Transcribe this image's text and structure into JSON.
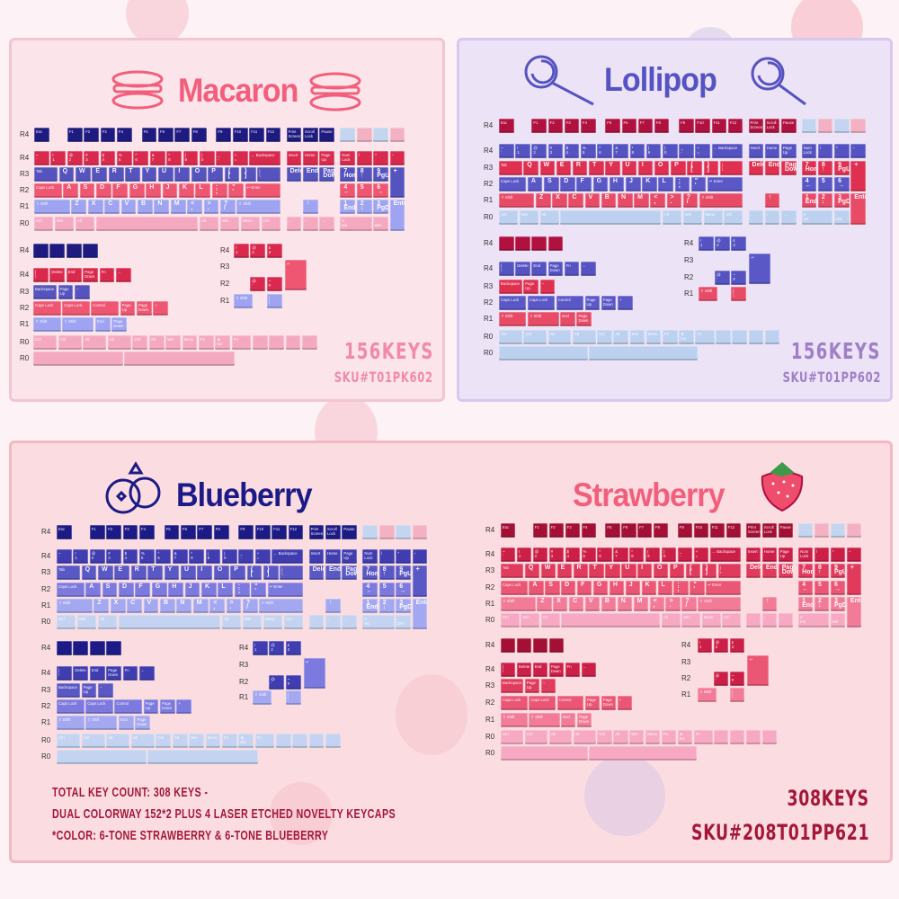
{
  "panels": {
    "macaron": {
      "title": "Macaron",
      "keys": "156KEYS",
      "sku": "SKU#T01PK602",
      "title_color": "#f25f7c",
      "accent": "#f08aa8",
      "colors": [
        "#1e1b80",
        "#d92a4e",
        "#5553bd",
        "#ee5672",
        "#9ea3f2",
        "#f5a9c0"
      ]
    },
    "lollipop": {
      "title": "Lollipop",
      "keys": "156KEYS",
      "sku": "SKU#T01PP602",
      "title_color": "#5553c2",
      "accent": "#a07fc6",
      "colors": [
        "#b0113f",
        "#5553c2",
        "#e0304f",
        "#5a57c6",
        "#e74b66",
        "#bcd0ef"
      ]
    },
    "blueberry": {
      "title": "Blueberry",
      "title_color": "#1c1a86",
      "colors": [
        "#1c1a86",
        "#3f3db0",
        "#5958c4",
        "#7c7ade",
        "#a3a8f0",
        "#c3d3f1"
      ]
    },
    "strawberry": {
      "title": "Strawberry",
      "title_color": "#f25f7c",
      "colors": [
        "#a30f35",
        "#cc1f48",
        "#e03b5c",
        "#ea5674",
        "#f27b98",
        "#f7a8c2"
      ]
    }
  },
  "combined": {
    "keys": "308KEYS",
    "sku": "SKU#208T01PP621",
    "notes": [
      "TOTAL KEY COUNT: 308 KEYS -",
      "DUAL COLORWAY 152*2 PLUS 4 LASER ETCHED NOVELTY KEYCAPS",
      "*COLOR: 6-TONE STRAWBERRY & 6-TONE BLUEBERRY"
    ],
    "text_color": "#a3173a"
  },
  "row_labels": {
    "main": [
      "R4",
      "R4",
      "R3",
      "R2",
      "R1",
      "R0"
    ],
    "extras_left": [
      "R4",
      "R4",
      "R3",
      "R2",
      "R1",
      "R0",
      "R0"
    ],
    "extras_right": [
      "R4",
      "R3",
      "R2",
      "R1"
    ]
  },
  "novelty_icons": [
    "magnifier-icon",
    "fruit-basket-icon",
    "macaron-icon",
    "strawberry-icon"
  ],
  "keyboard": {
    "main": [
      [
        "Esc",
        "F1",
        "F2",
        "F3",
        "F4",
        "F5",
        "F6",
        "F7",
        "F8",
        "F9",
        "F10",
        "F11",
        "F12",
        "Print\nScreen",
        "Scroll\nLock",
        "Pause",
        "",
        "",
        "",
        ""
      ],
      [
        "~\n`",
        "!\n1",
        "@\n2",
        "#\n3",
        "$\n4",
        "%\n5",
        "^\n6",
        "&\n7",
        "*\n8",
        "(\n9",
        ")\n0",
        "_\n-",
        "+\n=",
        "← Backspace",
        "Insert",
        "Home",
        "Page\nUp",
        "Num\nLock",
        "/",
        "*",
        "−"
      ],
      [
        "Tab",
        "Q",
        "W",
        "E",
        "R",
        "T",
        "Y",
        "U",
        "I",
        "O",
        "P",
        "{\n[",
        "}\n]",
        "|\n\\",
        "Delete",
        "End",
        "Page\nDown",
        "7\nHome",
        "8\n↑",
        "9\nPgUp",
        "+"
      ],
      [
        "Caps Lock",
        "A",
        "S",
        "D",
        "F",
        "G",
        "H",
        "J",
        "K",
        "L",
        ":\n;",
        "\"\n'",
        "↵ Enter",
        "4\n←",
        "5",
        "6\n→"
      ],
      [
        "⇧ Shift",
        "Z",
        "X",
        "C",
        "V",
        "B",
        "N",
        "M",
        "<\n,",
        ">\n.",
        "?\n/",
        "⇧ Shift",
        "↑",
        "1\nEnd",
        "2\n↓",
        "3\nPgDn",
        "Enter"
      ],
      [
        "Ctrl",
        "Win",
        "Alt",
        "",
        "Alt",
        "Win",
        "Menu",
        "Ctrl",
        "←",
        "↓",
        "→",
        "0\nIns",
        ".\nDel"
      ]
    ],
    "extras_left": [
      [
        "",
        "",
        "",
        ""
      ],
      [
        "|\n\\",
        "Delete",
        "End",
        "Page\nDown",
        "Fn",
        "←"
      ],
      [
        "Backspace",
        "Page\nUp",
        "−"
      ],
      [
        "Caps Lock",
        "Caps Lock",
        "Control",
        "Page\nUp",
        "Page\nDown",
        "+"
      ],
      [
        "⇧ Shift",
        "⇧ Shift",
        "End",
        "Page\nDown"
      ],
      [
        "Ctrl",
        "Ctrl",
        "Alt",
        "Alt",
        "Ctrl",
        "Alt",
        "Win",
        "Menu",
        "Fn",
        "⊕\nIns",
        "Fn",
        "",
        "",
        "",
        ""
      ],
      [
        "",
        ""
      ]
    ],
    "extras_right": [
      [
        "!\n1",
        "@\n2",
        "£\n3"
      ],
      [
        "↵"
      ],
      [
        "@\n'",
        "~\n#"
      ],
      [
        "⇧ Shift",
        "|\n\\"
      ]
    ]
  }
}
